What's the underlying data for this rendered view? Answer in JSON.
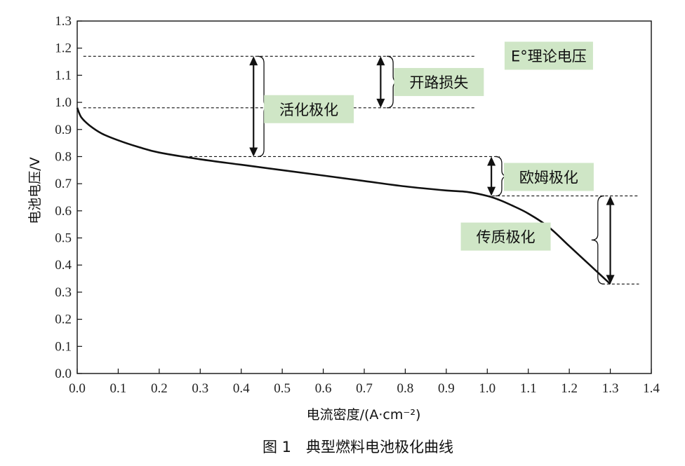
{
  "chart_data": {
    "type": "line",
    "xlabel": "电流密度/(A·cm⁻²)",
    "ylabel": "电池电压/V",
    "caption": "图 1　典型燃料电池极化曲线",
    "xlim": [
      0,
      1.4
    ],
    "ylim": [
      0,
      1.3
    ],
    "x_ticks": [
      "0.0",
      "0.1",
      "0.2",
      "0.3",
      "0.4",
      "0.5",
      "0.6",
      "0.7",
      "0.8",
      "0.9",
      "1.0",
      "1.1",
      "1.2",
      "1.3",
      "1.4"
    ],
    "y_ticks": [
      "0.0",
      "0.1",
      "0.2",
      "0.3",
      "0.4",
      "0.5",
      "0.6",
      "0.7",
      "0.8",
      "0.9",
      "1.0",
      "1.1",
      "1.2",
      "1.3"
    ],
    "grid": false,
    "series": [
      {
        "x": [
          0.0,
          0.01,
          0.03,
          0.06,
          0.1,
          0.15,
          0.2,
          0.3,
          0.4,
          0.5,
          0.6,
          0.7,
          0.8,
          0.9,
          0.95,
          1.0,
          1.03,
          1.06,
          1.1,
          1.15,
          1.2,
          1.25,
          1.3
        ],
        "y": [
          0.98,
          0.945,
          0.915,
          0.885,
          0.86,
          0.835,
          0.815,
          0.79,
          0.77,
          0.75,
          0.73,
          0.71,
          0.69,
          0.675,
          0.67,
          0.655,
          0.64,
          0.62,
          0.59,
          0.54,
          0.47,
          0.4,
          0.33
        ],
        "color": "#111111"
      }
    ],
    "annotations": [
      {
        "label": "E°理论电压",
        "value": 1.17
      },
      {
        "label": "开路损失",
        "from": 1.17,
        "to": 0.98
      },
      {
        "label": "活化极化",
        "from": 1.17,
        "to": 0.8
      },
      {
        "label": "欧姆极化",
        "from": 0.8,
        "to": 0.655
      },
      {
        "label": "传质极化",
        "from": 0.655,
        "to": 0.33
      }
    ],
    "colors": {
      "label_bg": "#cfe6c6",
      "line": "#111111"
    }
  }
}
